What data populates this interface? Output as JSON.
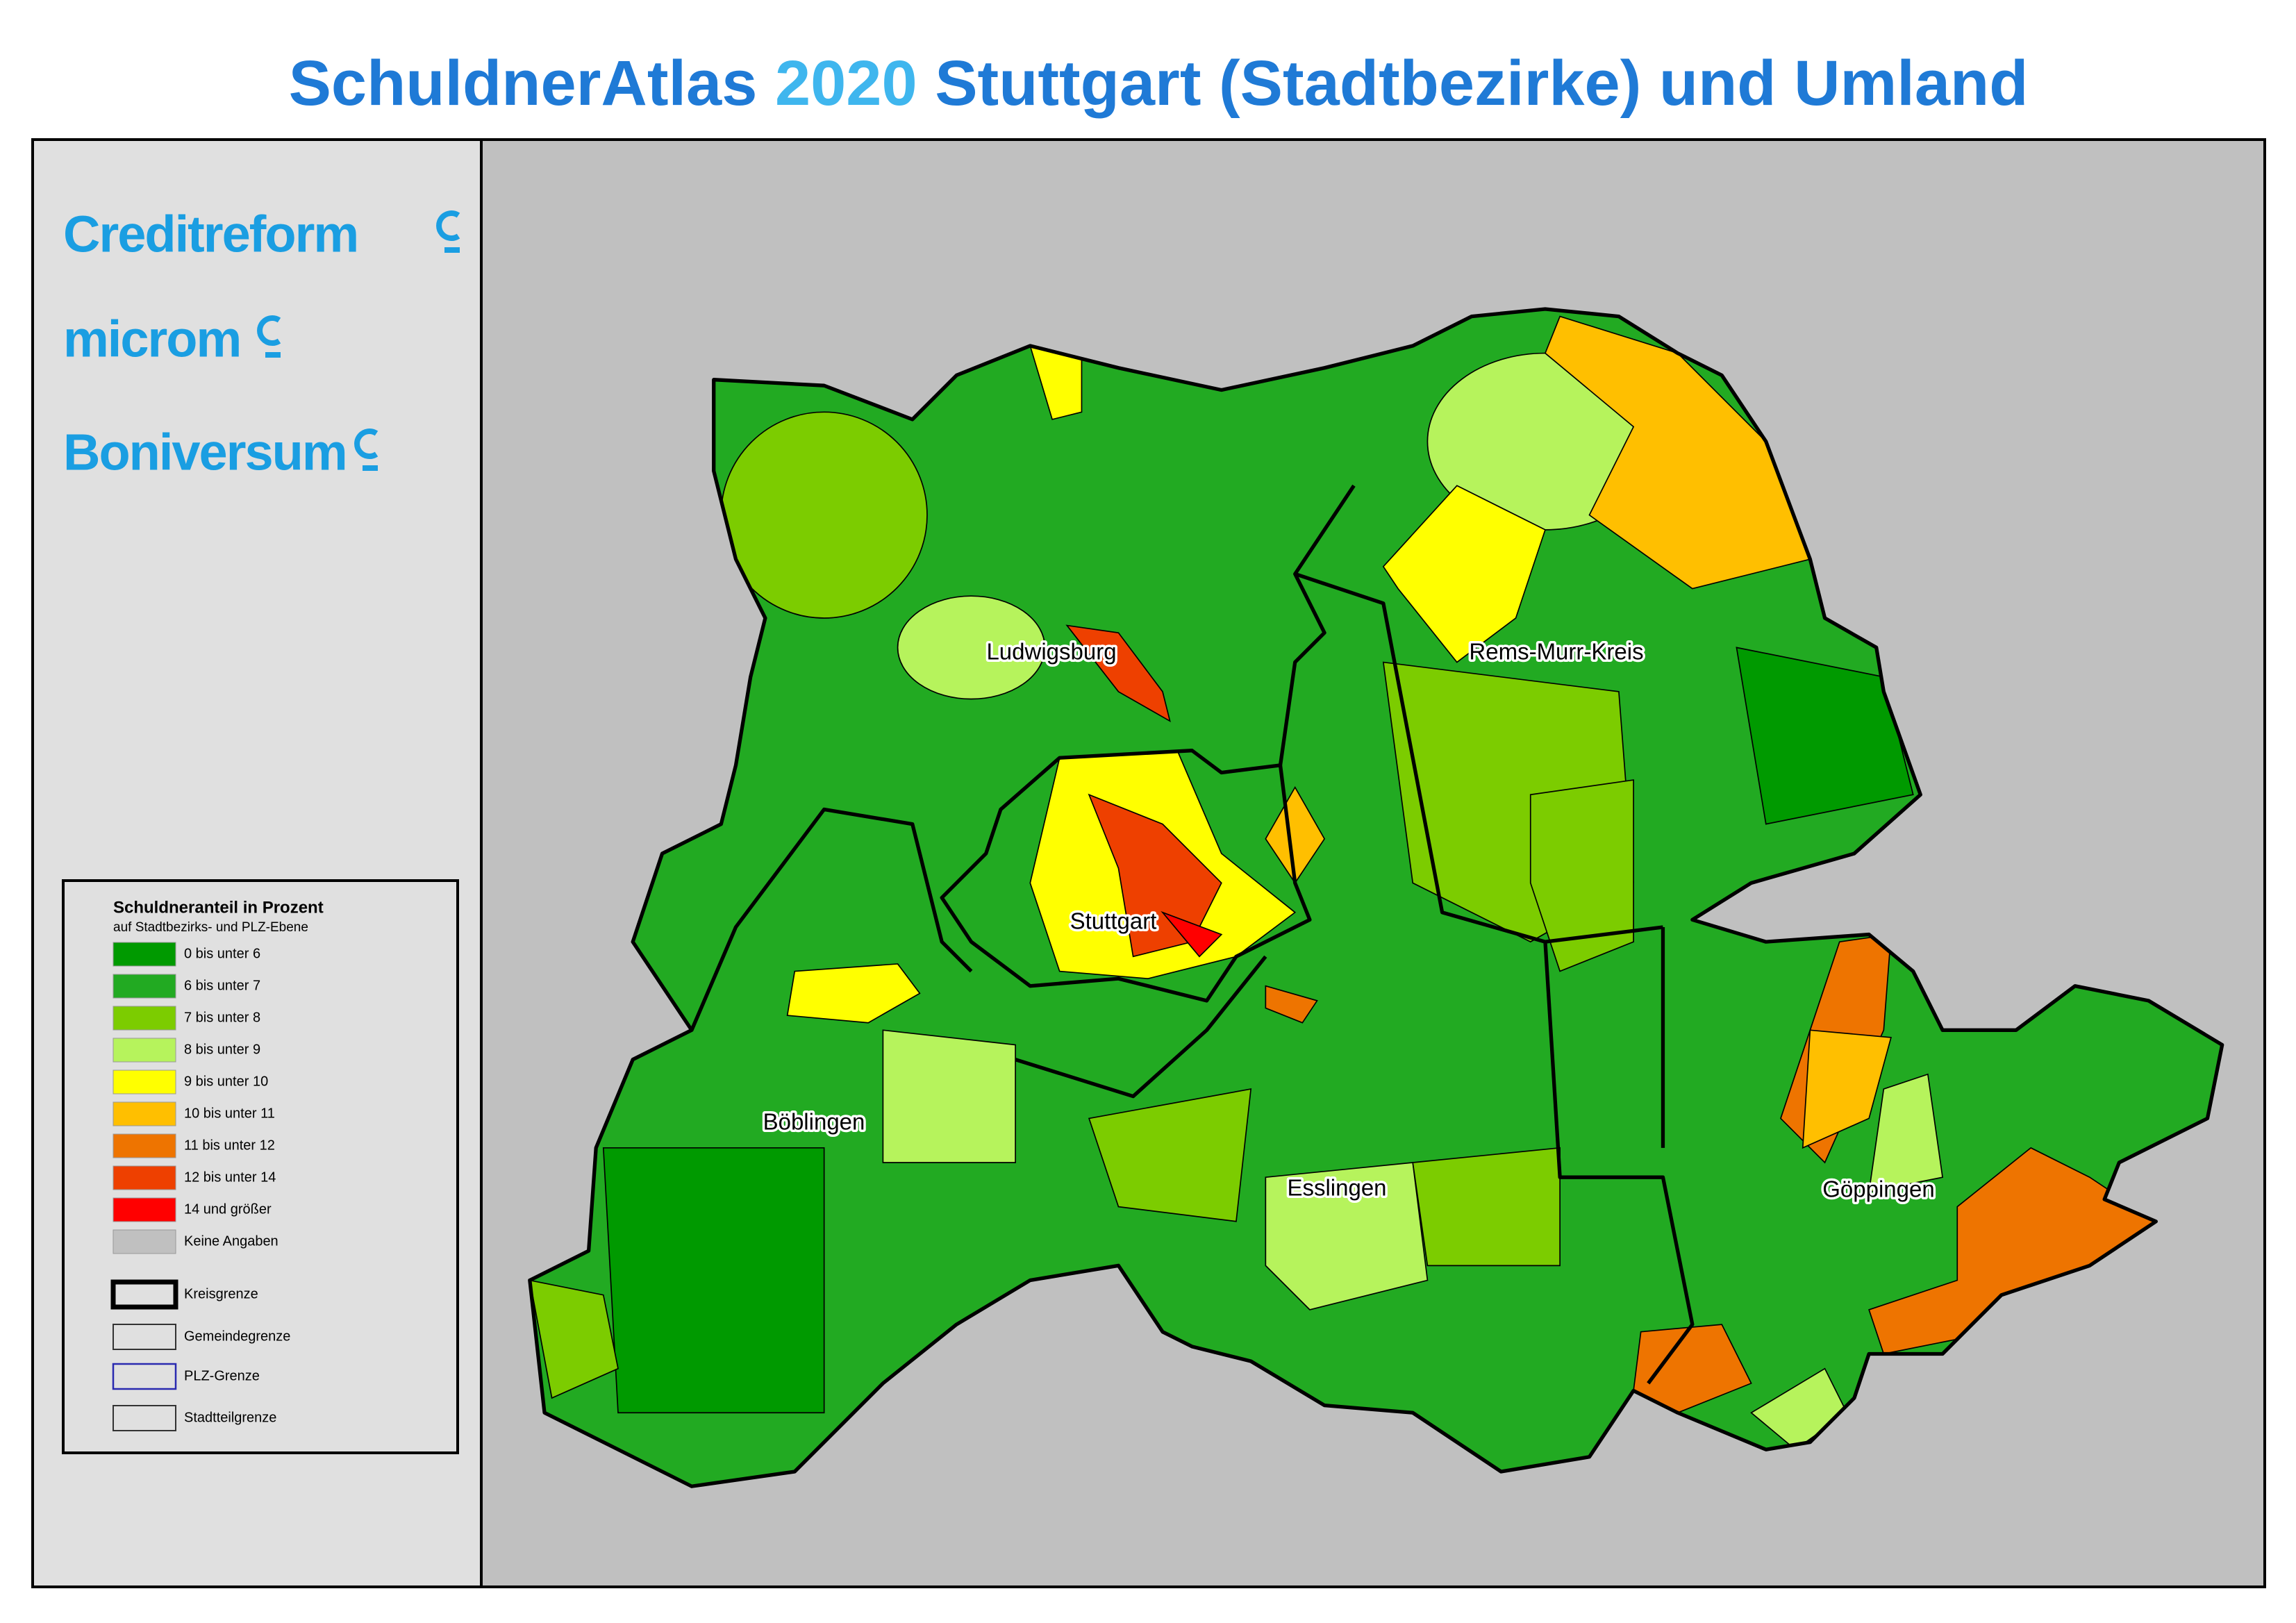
{
  "title": {
    "parts": [
      "SchuldnerAtlas",
      "2020",
      "Stuttgart (Stadtbezirke) und Umland"
    ]
  },
  "logos": [
    "Creditreform",
    "microm",
    "Boniversum"
  ],
  "legend": {
    "title": "Schuldneranteil in Prozent",
    "subtitle": "auf Stadtbezirks- und PLZ-Ebene",
    "classes": [
      {
        "label": "0 bis unter 6",
        "color": "#009a00"
      },
      {
        "label": "6 bis unter 7",
        "color": "#22aa22"
      },
      {
        "label": "7 bis unter 8",
        "color": "#7ccc00"
      },
      {
        "label": "8 bis unter 9",
        "color": "#b6f35c"
      },
      {
        "label": "9 bis unter 10",
        "color": "#ffff00"
      },
      {
        "label": "10 bis unter 11",
        "color": "#ffbf00"
      },
      {
        "label": "11 bis unter 12",
        "color": "#ee7400"
      },
      {
        "label": "12 bis unter 14",
        "color": "#ee4000"
      },
      {
        "label": "14 und größer",
        "color": "#ff0000"
      },
      {
        "label": "Keine Angaben",
        "color": "#c0c0c0"
      }
    ],
    "borders": [
      {
        "label": "Kreisgrenze",
        "color": "#000000"
      },
      {
        "label": "Gemeindegrenze",
        "color": "#333333"
      },
      {
        "label": "PLZ-Grenze",
        "color": "#2a2ab0"
      },
      {
        "label": "Stadtteilgrenze",
        "color": "#333333"
      }
    ]
  },
  "map": {
    "labels": [
      "Ludwigsburg",
      "Rems-Murr-Kreis",
      "Stuttgart",
      "Böblingen",
      "Esslingen",
      "Göppingen"
    ]
  }
}
